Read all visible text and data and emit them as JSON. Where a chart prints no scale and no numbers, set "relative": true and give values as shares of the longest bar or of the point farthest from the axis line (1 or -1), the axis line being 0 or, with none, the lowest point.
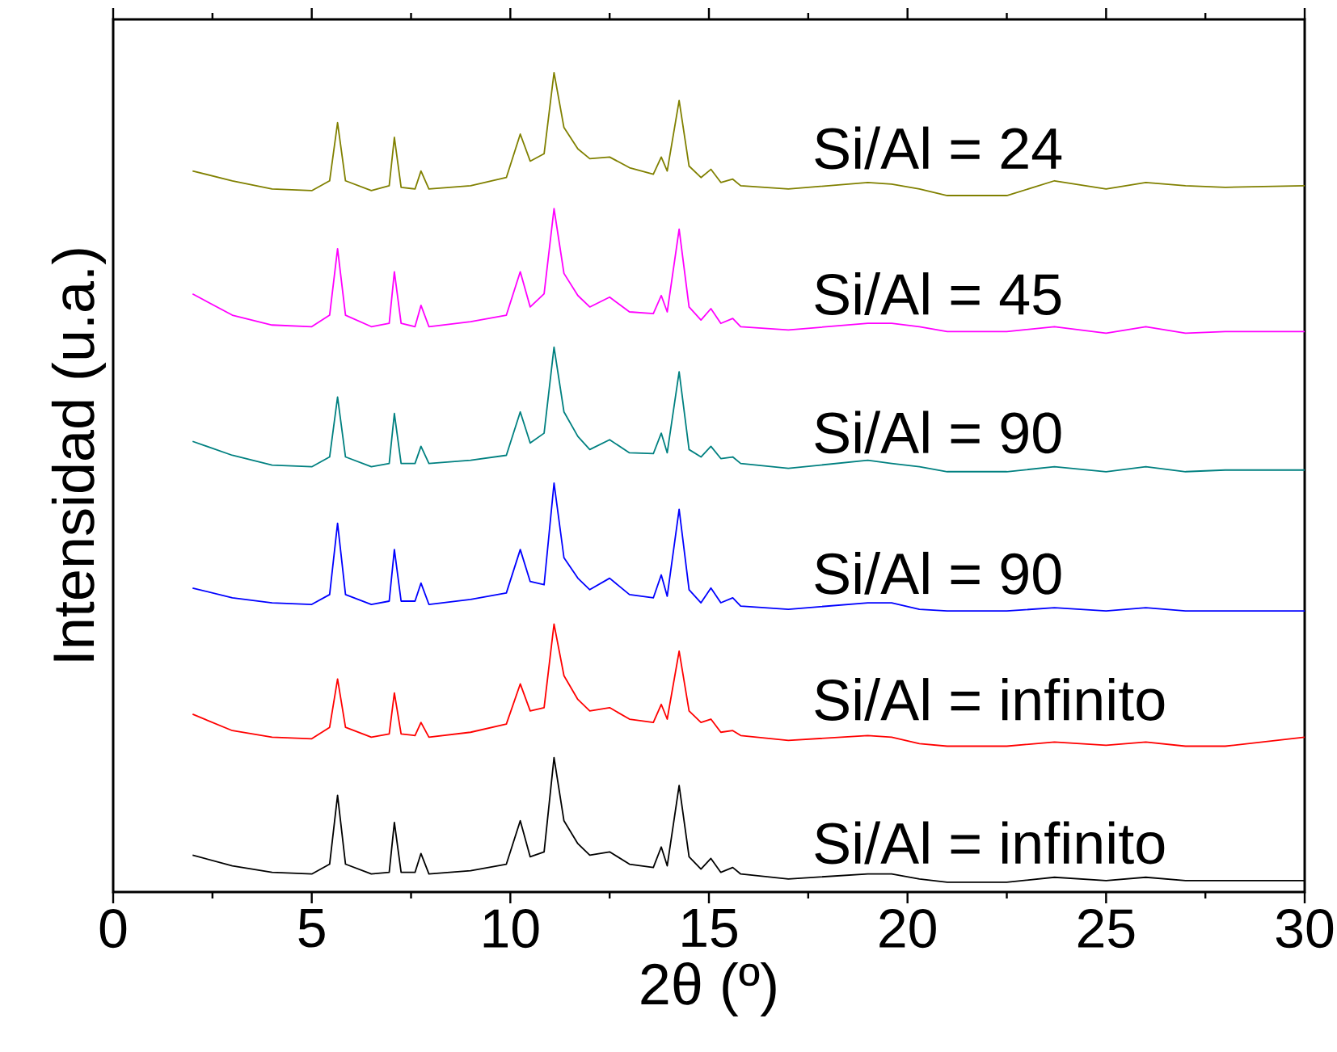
{
  "chart_data": {
    "type": "line",
    "relative": true,
    "xlabel": "2θ (º)",
    "ylabel": "Intensidad (u.a.)",
    "xlim": [
      0,
      30
    ],
    "xticks": [
      0,
      5,
      10,
      15,
      20,
      25,
      30
    ],
    "tick_labels": "x",
    "legend": false,
    "line_style": "solid",
    "marker": "none",
    "x": [
      2,
      3,
      4,
      5,
      5.45,
      5.65,
      5.85,
      6.5,
      6.95,
      7.08,
      7.25,
      7.6,
      7.75,
      7.95,
      9,
      9.9,
      10.25,
      10.5,
      10.85,
      11.1,
      11.35,
      11.7,
      12,
      12.5,
      13,
      13.6,
      13.8,
      13.95,
      14.25,
      14.5,
      14.8,
      15.05,
      15.3,
      15.6,
      15.8,
      17,
      19,
      19.6,
      20.3,
      21,
      22.5,
      23.7,
      25,
      26,
      27,
      28,
      30
    ],
    "series": [
      {
        "name": "Si/Al = 24",
        "color": "#808000",
        "values": [
          0.88,
          0.868,
          0.858,
          0.856,
          0.868,
          0.939,
          0.868,
          0.856,
          0.862,
          0.921,
          0.86,
          0.858,
          0.88,
          0.858,
          0.862,
          0.872,
          0.925,
          0.892,
          0.901,
          1,
          0.933,
          0.907,
          0.895,
          0.897,
          0.884,
          0.876,
          0.897,
          0.88,
          0.966,
          0.886,
          0.872,
          0.882,
          0.866,
          0.87,
          0.862,
          0.858,
          0.866,
          0.864,
          0.858,
          0.85,
          0.85,
          0.868,
          0.858,
          0.866,
          0.862,
          0.86,
          0.862
        ]
      },
      {
        "name": "Si/Al = 45",
        "color": "#ff00ff",
        "values": [
          0.73,
          0.704,
          0.692,
          0.69,
          0.704,
          0.785,
          0.704,
          0.69,
          0.694,
          0.757,
          0.694,
          0.69,
          0.716,
          0.69,
          0.696,
          0.704,
          0.757,
          0.714,
          0.73,
          0.834,
          0.755,
          0.728,
          0.714,
          0.726,
          0.708,
          0.706,
          0.728,
          0.708,
          0.809,
          0.714,
          0.698,
          0.712,
          0.694,
          0.7,
          0.69,
          0.686,
          0.694,
          0.694,
          0.69,
          0.684,
          0.684,
          0.69,
          0.682,
          0.69,
          0.682,
          0.684,
          0.684
        ]
      },
      {
        "name": "Si/Al = 90",
        "color": "#008080",
        "values": [
          0.55,
          0.533,
          0.521,
          0.519,
          0.531,
          0.604,
          0.531,
          0.519,
          0.523,
          0.584,
          0.523,
          0.523,
          0.544,
          0.523,
          0.527,
          0.533,
          0.586,
          0.548,
          0.56,
          0.665,
          0.586,
          0.556,
          0.54,
          0.552,
          0.536,
          0.535,
          0.56,
          0.536,
          0.635,
          0.54,
          0.531,
          0.544,
          0.529,
          0.531,
          0.523,
          0.517,
          0.527,
          0.523,
          0.519,
          0.513,
          0.513,
          0.519,
          0.513,
          0.519,
          0.513,
          0.515,
          0.515
        ]
      },
      {
        "name": "Si/Al = 90",
        "color": "#0000ff",
        "values": [
          0.371,
          0.359,
          0.353,
          0.351,
          0.363,
          0.45,
          0.363,
          0.351,
          0.355,
          0.418,
          0.355,
          0.355,
          0.377,
          0.351,
          0.357,
          0.365,
          0.418,
          0.379,
          0.375,
          0.499,
          0.408,
          0.383,
          0.369,
          0.383,
          0.363,
          0.359,
          0.387,
          0.361,
          0.467,
          0.369,
          0.353,
          0.371,
          0.353,
          0.359,
          0.349,
          0.345,
          0.353,
          0.353,
          0.345,
          0.343,
          0.343,
          0.347,
          0.343,
          0.347,
          0.343,
          0.343,
          0.343
        ]
      },
      {
        "name": "Si/Al = infinito",
        "color": "#ff0000",
        "values": [
          0.217,
          0.197,
          0.189,
          0.187,
          0.201,
          0.26,
          0.201,
          0.189,
          0.193,
          0.243,
          0.193,
          0.191,
          0.207,
          0.189,
          0.195,
          0.205,
          0.254,
          0.221,
          0.225,
          0.327,
          0.264,
          0.235,
          0.221,
          0.225,
          0.211,
          0.207,
          0.229,
          0.211,
          0.294,
          0.221,
          0.207,
          0.211,
          0.195,
          0.197,
          0.191,
          0.185,
          0.191,
          0.189,
          0.181,
          0.178,
          0.178,
          0.183,
          0.179,
          0.183,
          0.178,
          0.178,
          0.189
        ]
      },
      {
        "name": "Si/Al = infinito",
        "color": "#000000",
        "values": [
          0.045,
          0.032,
          0.024,
          0.022,
          0.034,
          0.118,
          0.034,
          0.022,
          0.024,
          0.085,
          0.024,
          0.024,
          0.047,
          0.022,
          0.026,
          0.034,
          0.087,
          0.043,
          0.049,
          0.164,
          0.087,
          0.059,
          0.045,
          0.049,
          0.034,
          0.03,
          0.055,
          0.032,
          0.13,
          0.043,
          0.028,
          0.041,
          0.024,
          0.03,
          0.022,
          0.016,
          0.022,
          0.022,
          0.016,
          0.012,
          0.012,
          0.018,
          0.014,
          0.018,
          0.014,
          0.014,
          0.014
        ]
      }
    ]
  }
}
